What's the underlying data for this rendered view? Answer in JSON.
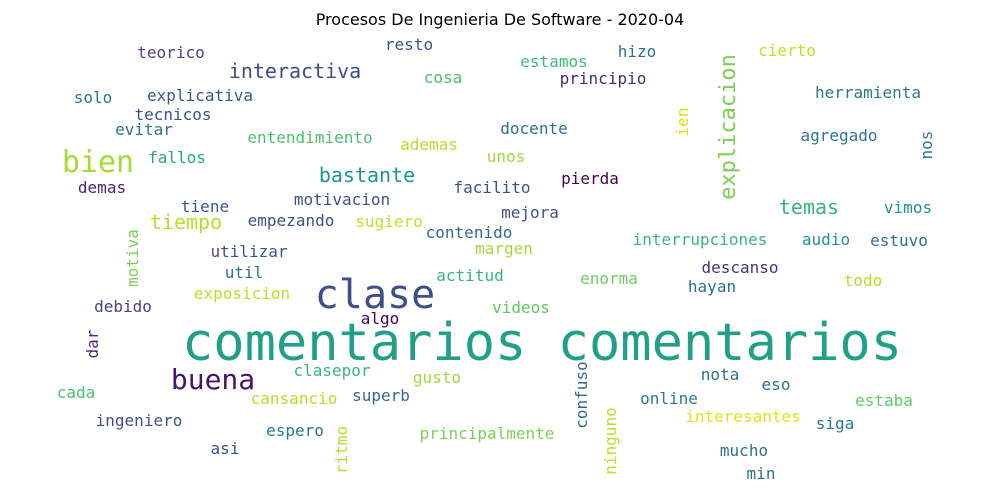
{
  "title": "Procesos De Ingenieria De Software - 2020-04",
  "words": [
    {
      "text": "comentarios comentarios",
      "color": "#21a087"
    },
    {
      "text": "clase",
      "color": "#3b4f8a"
    },
    {
      "text": "buena",
      "color": "#46166b"
    },
    {
      "text": "bien",
      "color": "#a5db36"
    },
    {
      "text": "explicacion",
      "color": "#7ad151"
    },
    {
      "text": "interactiva",
      "color": "#3e4c8a"
    },
    {
      "text": "bastante",
      "color": "#1f968b"
    },
    {
      "text": "tiempo",
      "color": "#b5de2b"
    },
    {
      "text": "temas",
      "color": "#35b779"
    },
    {
      "text": "teorico",
      "color": "#414487"
    },
    {
      "text": "resto",
      "color": "#3b528b"
    },
    {
      "text": "hizo",
      "color": "#2c728e"
    },
    {
      "text": "cierto",
      "color": "#c2df23"
    },
    {
      "text": "estamos",
      "color": "#3dbc74"
    },
    {
      "text": "solo",
      "color": "#2a788e"
    },
    {
      "text": "explicativa",
      "color": "#38598c"
    },
    {
      "text": "cosa",
      "color": "#4ac16d"
    },
    {
      "text": "principio",
      "color": "#482878"
    },
    {
      "text": "herramienta",
      "color": "#2a788e"
    },
    {
      "text": "tecnicos",
      "color": "#3b528b"
    },
    {
      "text": "ien",
      "color": "#dde318"
    },
    {
      "text": "evitar",
      "color": "#2c728e"
    },
    {
      "text": "docente",
      "color": "#2c728e"
    },
    {
      "text": "agregado",
      "color": "#2a788e"
    },
    {
      "text": "entendimiento",
      "color": "#4ac16d"
    },
    {
      "text": "nos",
      "color": "#2a788e"
    },
    {
      "text": "ademas",
      "color": "#b5de2b"
    },
    {
      "text": "fallos",
      "color": "#22a884"
    },
    {
      "text": "unos",
      "color": "#a0da39"
    },
    {
      "text": "demas",
      "color": "#482878"
    },
    {
      "text": "motivacion",
      "color": "#3b528b"
    },
    {
      "text": "facilito",
      "color": "#3b528b"
    },
    {
      "text": "pierda",
      "color": "#440154"
    },
    {
      "text": "tiene",
      "color": "#39568c"
    },
    {
      "text": "vimos",
      "color": "#21918c"
    },
    {
      "text": "empezando",
      "color": "#3b528b"
    },
    {
      "text": "sugiero",
      "color": "#c2df23"
    },
    {
      "text": "mejora",
      "color": "#3b528b"
    },
    {
      "text": "contenido",
      "color": "#31688e"
    },
    {
      "text": "motiva",
      "color": "#7ad151"
    },
    {
      "text": "utilizar",
      "color": "#3b528b"
    },
    {
      "text": "margen",
      "color": "#a0da39"
    },
    {
      "text": "interrupciones",
      "color": "#35b779"
    },
    {
      "text": "audio",
      "color": "#21918c"
    },
    {
      "text": "estuvo",
      "color": "#2c728e"
    },
    {
      "text": "util",
      "color": "#2c728e"
    },
    {
      "text": "actitud",
      "color": "#35b779"
    },
    {
      "text": "enorma",
      "color": "#6ccd5a"
    },
    {
      "text": "descanso",
      "color": "#46327e"
    },
    {
      "text": "todo",
      "color": "#b5de2b"
    },
    {
      "text": "exposicion",
      "color": "#bddf26"
    },
    {
      "text": "hayan",
      "color": "#2c728e"
    },
    {
      "text": "debido",
      "color": "#414487"
    },
    {
      "text": "algo",
      "color": "#440154"
    },
    {
      "text": "videos",
      "color": "#5ec962"
    },
    {
      "text": "dar",
      "color": "#482878"
    },
    {
      "text": "clasepor",
      "color": "#35b779"
    },
    {
      "text": "gusto",
      "color": "#a0da39"
    },
    {
      "text": "confuso",
      "color": "#31688e"
    },
    {
      "text": "nota",
      "color": "#2c728e"
    },
    {
      "text": "cada",
      "color": "#4ac16d"
    },
    {
      "text": "eso",
      "color": "#2c728e"
    },
    {
      "text": "cansancio",
      "color": "#b5de2b"
    },
    {
      "text": "superb",
      "color": "#31688e"
    },
    {
      "text": "online",
      "color": "#2a788e"
    },
    {
      "text": "estaba",
      "color": "#5ec962"
    },
    {
      "text": "ingeniero",
      "color": "#3b528b"
    },
    {
      "text": "interesantes",
      "color": "#dde318"
    },
    {
      "text": "siga",
      "color": "#2a788e"
    },
    {
      "text": "espero",
      "color": "#2a788e"
    },
    {
      "text": "ritmo",
      "color": "#b5de2b"
    },
    {
      "text": "principalmente",
      "color": "#7ad151"
    },
    {
      "text": "ninguno",
      "color": "#bddf26"
    },
    {
      "text": "asi",
      "color": "#3b528b"
    },
    {
      "text": "mucho",
      "color": "#2c728e"
    },
    {
      "text": "min",
      "color": "#2c728e"
    }
  ]
}
